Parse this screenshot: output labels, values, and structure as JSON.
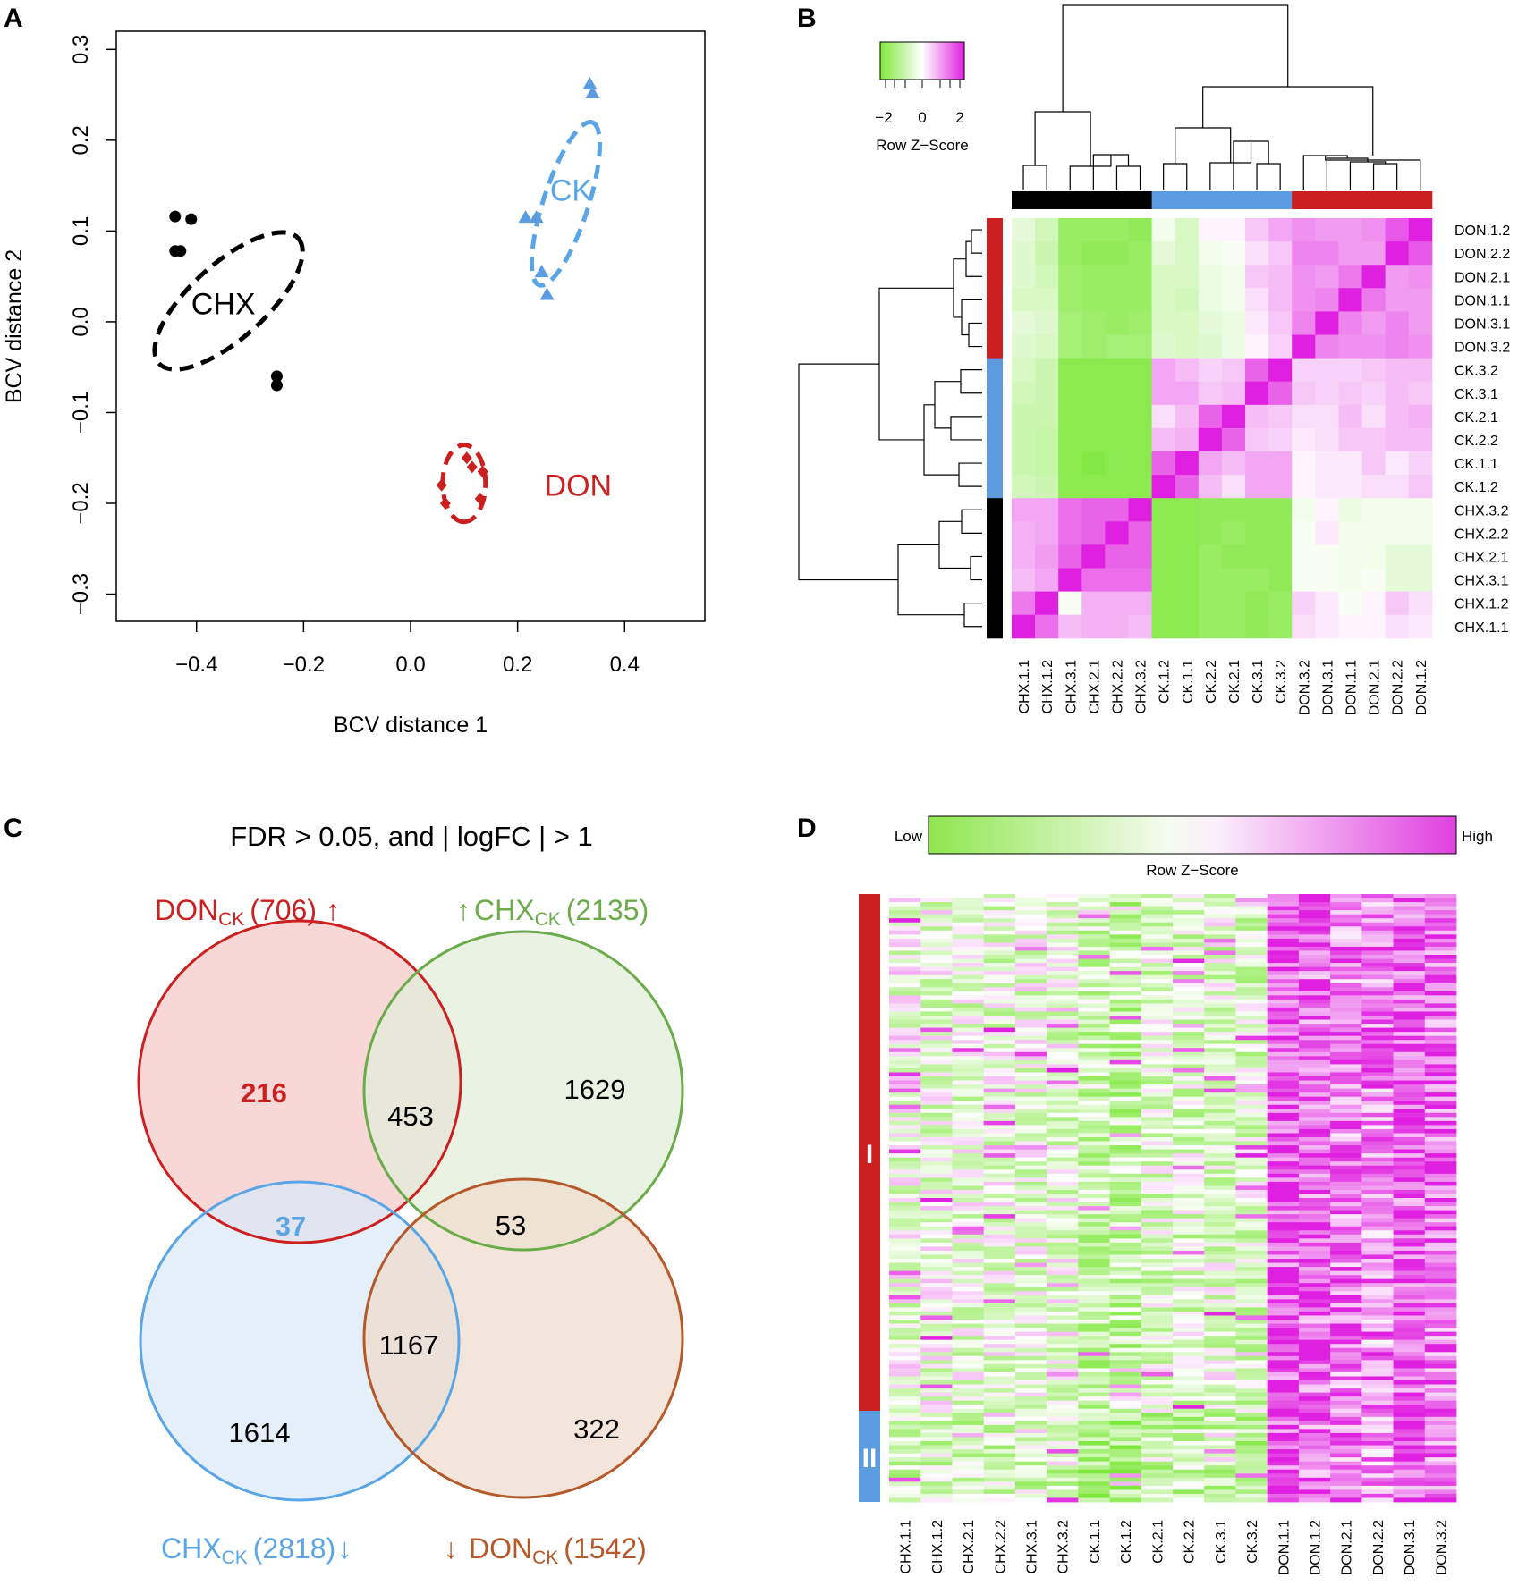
{
  "panels": {
    "A": "A",
    "B": "B",
    "C": "C",
    "D": "D"
  },
  "colors": {
    "chx": "#000000",
    "ck": "#5b9be0",
    "don": "#cc1f1f",
    "ck_label": "#5aa5e6",
    "green_set": "#6bab4a",
    "brown_set": "#b5592a",
    "heat_low": "#7ee83b",
    "heat_mid": "#ffffff",
    "heat_high": "#e020e0"
  },
  "chart_data": [
    {
      "id": "A",
      "type": "scatter",
      "title": "",
      "xlabel": "BCV distance 1",
      "ylabel": "BCV distance 2",
      "xlim": [
        -0.55,
        0.55
      ],
      "ylim": [
        -0.33,
        0.32
      ],
      "xticks": [
        -0.4,
        -0.2,
        0.0,
        0.2,
        0.4
      ],
      "xtick_labels": [
        "−0.4",
        "−0.2",
        "0.0",
        "0.2",
        "0.4"
      ],
      "yticks": [
        -0.3,
        -0.2,
        -0.1,
        0.0,
        0.1,
        0.2,
        0.3
      ],
      "ytick_labels": [
        "−0.3",
        "−0.2",
        "−0.1",
        "0.0",
        "0.1",
        "0.2",
        "0.3"
      ],
      "series": [
        {
          "name": "CHX",
          "marker": "circle",
          "color": "#000000",
          "x": [
            -0.44,
            -0.41,
            -0.44,
            -0.43,
            -0.25,
            -0.25
          ],
          "y": [
            0.116,
            0.113,
            0.078,
            0.078,
            -0.06,
            -0.07
          ]
        },
        {
          "name": "CK",
          "marker": "triangle",
          "color": "#5b9be0",
          "x": [
            0.335,
            0.34,
            0.215,
            0.235,
            0.245,
            0.255
          ],
          "y": [
            0.262,
            0.252,
            0.115,
            0.115,
            0.055,
            0.03
          ]
        },
        {
          "name": "DON",
          "marker": "diamond",
          "color": "#cc1f1f",
          "x": [
            0.105,
            0.115,
            0.058,
            0.065,
            0.135,
            0.13
          ],
          "y": [
            -0.15,
            -0.16,
            -0.18,
            -0.2,
            -0.165,
            -0.195
          ]
        }
      ],
      "ellipses": [
        {
          "group": "CHX",
          "cx": -0.34,
          "cy": 0.023,
          "rx": 0.175,
          "ry": 0.07,
          "angle": -42,
          "color": "#000000"
        },
        {
          "group": "CK",
          "cx": 0.29,
          "cy": 0.13,
          "rx": 0.16,
          "ry": 0.042,
          "angle": -72,
          "color": "#5aa5e6"
        },
        {
          "group": "DON",
          "cx": 0.1,
          "cy": -0.178,
          "rx": 0.072,
          "ry": 0.04,
          "angle": 90,
          "color": "#cc1f1f"
        }
      ],
      "annotations": [
        {
          "text": "CHX",
          "x": -0.35,
          "y": 0.02,
          "color": "#000000"
        },
        {
          "text": "CK",
          "x": 0.3,
          "y": 0.145,
          "color": "#5aa5e6"
        },
        {
          "text": "DON",
          "x": 0.25,
          "y": -0.18,
          "color": "#cc1f1f"
        }
      ]
    },
    {
      "id": "B",
      "type": "heatmap",
      "title": "",
      "colorkey": {
        "ticks": [
          "−2",
          "0",
          "2"
        ],
        "label": "Row Z−Score"
      },
      "columns": [
        "CHX.1.1",
        "CHX.1.2",
        "CHX.3.1",
        "CHX.2.1",
        "CHX.2.2",
        "CHX.3.2",
        "CK.1.2",
        "CK.1.1",
        "CK.2.2",
        "CK.2.1",
        "CK.3.1",
        "CK.3.2",
        "DON.3.2",
        "DON.3.1",
        "DON.1.1",
        "DON.2.1",
        "DON.2.2",
        "DON.1.2"
      ],
      "column_groups": [
        "CHX",
        "CHX",
        "CHX",
        "CHX",
        "CHX",
        "CHX",
        "CK",
        "CK",
        "CK",
        "CK",
        "CK",
        "CK",
        "DON",
        "DON",
        "DON",
        "DON",
        "DON",
        "DON"
      ],
      "rows": [
        "DON.1.2",
        "DON.2.2",
        "DON.2.1",
        "DON.1.1",
        "DON.3.1",
        "DON.3.2",
        "CK.3.2",
        "CK.3.1",
        "CK.2.1",
        "CK.2.2",
        "CK.1.1",
        "CK.1.2",
        "CHX.3.2",
        "CHX.2.2",
        "CHX.2.1",
        "CHX.3.1",
        "CHX.1.2",
        "CHX.1.1"
      ],
      "row_groups": [
        "DON",
        "DON",
        "DON",
        "DON",
        "DON",
        "DON",
        "CK",
        "CK",
        "CK",
        "CK",
        "CK",
        "CK",
        "CHX",
        "CHX",
        "CHX",
        "CHX",
        "CHX",
        "CHX"
      ],
      "values": [
        [
          -0.4,
          -0.7,
          -1.6,
          -1.6,
          -1.6,
          -1.7,
          -0.2,
          -0.6,
          0.1,
          0.1,
          0.5,
          0.8,
          1.0,
          0.9,
          0.9,
          1.0,
          1.5,
          2.0
        ],
        [
          -0.5,
          -0.8,
          -1.6,
          -1.7,
          -1.7,
          -1.6,
          -0.4,
          -0.6,
          -0.2,
          -0.1,
          0.3,
          0.5,
          1.1,
          1.1,
          0.9,
          0.9,
          2.0,
          1.5
        ],
        [
          -0.5,
          -0.7,
          -1.5,
          -1.6,
          -1.6,
          -1.6,
          -0.6,
          -0.6,
          -0.3,
          -0.2,
          0.5,
          0.6,
          1.0,
          0.9,
          1.2,
          2.0,
          0.9,
          1.0
        ],
        [
          -0.6,
          -0.6,
          -1.5,
          -1.6,
          -1.6,
          -1.6,
          -0.6,
          -0.7,
          -0.3,
          -0.2,
          0.3,
          0.6,
          1.0,
          1.1,
          2.0,
          1.2,
          0.9,
          0.9
        ],
        [
          -0.4,
          -0.5,
          -1.4,
          -1.5,
          -1.6,
          -1.5,
          -0.6,
          -0.6,
          -0.4,
          -0.3,
          0.2,
          0.5,
          1.1,
          2.0,
          1.1,
          0.9,
          1.1,
          0.9
        ],
        [
          -0.5,
          -0.6,
          -1.4,
          -1.5,
          -1.4,
          -1.4,
          -0.5,
          -0.6,
          -0.5,
          -0.3,
          0.1,
          0.4,
          2.0,
          1.1,
          1.0,
          1.0,
          1.1,
          1.0
        ],
        [
          -0.6,
          -0.8,
          -1.8,
          -1.8,
          -1.8,
          -1.8,
          0.8,
          0.6,
          0.4,
          0.5,
          1.4,
          2.0,
          0.4,
          0.4,
          0.4,
          0.5,
          0.6,
          0.6
        ],
        [
          -0.7,
          -0.8,
          -1.8,
          -1.8,
          -1.8,
          -1.8,
          0.8,
          0.8,
          0.5,
          0.6,
          2.0,
          1.4,
          0.5,
          0.4,
          0.5,
          0.4,
          0.6,
          0.5
        ],
        [
          -0.8,
          -0.8,
          -1.8,
          -1.8,
          -1.8,
          -1.8,
          0.3,
          0.6,
          1.4,
          2.0,
          0.6,
          0.5,
          0.3,
          0.3,
          0.6,
          0.3,
          0.6,
          0.7
        ],
        [
          -0.8,
          -0.9,
          -1.8,
          -1.8,
          -1.8,
          -1.8,
          0.6,
          0.7,
          2.0,
          1.4,
          0.5,
          0.4,
          0.2,
          0.3,
          0.5,
          0.5,
          0.6,
          0.6
        ],
        [
          -0.8,
          -0.9,
          -1.8,
          -1.9,
          -1.8,
          -1.8,
          1.4,
          2.0,
          0.8,
          0.6,
          0.8,
          0.8,
          0.1,
          0.2,
          0.2,
          0.5,
          0.2,
          0.4
        ],
        [
          -0.7,
          -0.8,
          -1.8,
          -1.8,
          -1.8,
          -1.8,
          2.0,
          1.4,
          0.6,
          0.3,
          0.8,
          0.8,
          0.1,
          0.2,
          0.2,
          0.3,
          0.3,
          0.5
        ],
        [
          0.8,
          0.8,
          1.3,
          1.4,
          1.4,
          2.0,
          -1.8,
          -1.8,
          -1.7,
          -1.7,
          -1.7,
          -1.7,
          -0.2,
          0.1,
          -0.3,
          -0.2,
          -0.2,
          -0.2
        ],
        [
          0.7,
          0.8,
          1.3,
          1.4,
          2.0,
          1.4,
          -1.8,
          -1.8,
          -1.7,
          -1.6,
          -1.7,
          -1.7,
          -0.1,
          0.2,
          -0.2,
          -0.2,
          -0.2,
          -0.2
        ],
        [
          0.7,
          0.9,
          1.4,
          2.0,
          1.4,
          1.4,
          -1.8,
          -1.8,
          -1.6,
          -1.7,
          -1.7,
          -1.7,
          -0.1,
          -0.1,
          -0.2,
          -0.2,
          -0.4,
          -0.4
        ],
        [
          0.6,
          0.8,
          2.0,
          1.3,
          1.3,
          1.3,
          -1.8,
          -1.8,
          -1.6,
          -1.6,
          -1.6,
          -1.7,
          -0.1,
          -0.1,
          -0.2,
          -0.1,
          -0.4,
          -0.4
        ],
        [
          1.2,
          2.0,
          -0.1,
          0.7,
          0.7,
          0.7,
          -1.8,
          -1.8,
          -1.6,
          -1.6,
          -1.7,
          -1.6,
          0.4,
          0.2,
          -0.1,
          0.1,
          0.5,
          0.3
        ],
        [
          2.0,
          1.3,
          0.6,
          0.7,
          0.7,
          0.6,
          -1.8,
          -1.8,
          -1.6,
          -1.6,
          -1.7,
          -1.6,
          0.3,
          0.2,
          0.1,
          0.1,
          0.3,
          0.2
        ]
      ]
    },
    {
      "id": "C",
      "type": "venn",
      "title": "FDR > 0.05,  and  | logFC  | > 1",
      "sets": [
        {
          "name": "DON",
          "subscript": "CK",
          "count": "(706)",
          "arrow": "↑",
          "color": "#cc1f1f",
          "fill": "#f5c9c9"
        },
        {
          "name": "CHX",
          "subscript": "CK",
          "count": "(2135)",
          "arrow": "↑",
          "color": "#6bab4a",
          "fill": "#e1eed9"
        },
        {
          "name": "CHX",
          "subscript": "CK",
          "count": "(2818)",
          "arrow": "↓",
          "color": "#5aa5e6",
          "fill": "#dbe9f8"
        },
        {
          "name": "DON",
          "subscript": "CK",
          "count": "(1542)",
          "arrow": "↓",
          "color": "#b5592a",
          "fill": "#efdccd"
        }
      ],
      "regions": [
        {
          "label": "DON_CK up only",
          "value": "216",
          "color": "#cc1f1f",
          "bold": true
        },
        {
          "label": "DON_CK up & CHX_CK up",
          "value": "453",
          "color": "#000000",
          "bold": false
        },
        {
          "label": "CHX_CK up only",
          "value": "1629",
          "color": "#000000",
          "bold": false
        },
        {
          "label": "DON_CK up & CHX_CK down",
          "value": "37",
          "color": "#5aa5e6",
          "bold": true
        },
        {
          "label": "CHX_CK up & DON_CK down",
          "value": "53",
          "color": "#000000",
          "bold": false
        },
        {
          "label": "CHX_CK down & DON_CK down",
          "value": "1167",
          "color": "#000000",
          "bold": false
        },
        {
          "label": "CHX_CK down only",
          "value": "1614",
          "color": "#000000",
          "bold": false
        },
        {
          "label": "DON_CK down only",
          "value": "322",
          "color": "#000000",
          "bold": false
        }
      ]
    },
    {
      "id": "D",
      "type": "heatmap",
      "title": "",
      "colorkey": {
        "low": "Low",
        "high": "High",
        "label": "Row Z−Score"
      },
      "columns": [
        "CHX.1.1",
        "CHX.1.2",
        "CHX.2.1",
        "CHX.2.2",
        "CHX.3.1",
        "CHX.3.2",
        "CK.1.1",
        "CK.1.2",
        "CK.2.1",
        "CK.2.2",
        "CK.3.1",
        "CK.3.2",
        "DON.1.1",
        "DON.1.2",
        "DON.2.1",
        "DON.2.2",
        "DON.3.1",
        "DON.3.2"
      ],
      "column_means": [
        -0.3,
        -0.3,
        -0.35,
        -0.35,
        -0.35,
        -0.35,
        -0.8,
        -0.85,
        -0.5,
        -0.5,
        -0.45,
        -0.5,
        1.5,
        1.3,
        1.1,
        1.0,
        1.4,
        1.2
      ],
      "clusters": [
        {
          "label": "I",
          "color": "#cc1f1f",
          "fraction": 0.85
        },
        {
          "label": "II",
          "color": "#5b9be0",
          "fraction": 0.15
        }
      ]
    }
  ]
}
